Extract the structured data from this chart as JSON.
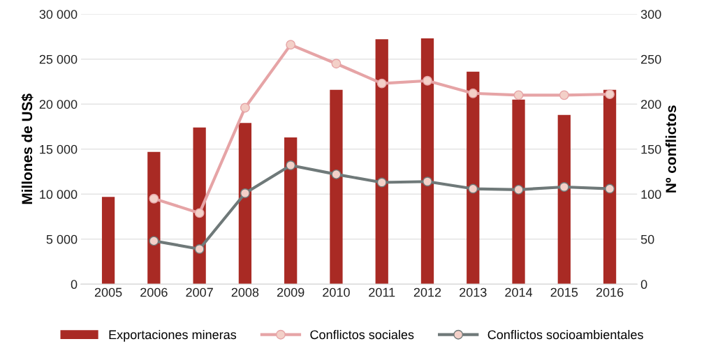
{
  "chart_data": {
    "type": "bar",
    "ylabel": "Millones de US$",
    "y2label": "Nº conflictos",
    "categories": [
      "2005",
      "2006",
      "2007",
      "2008",
      "2009",
      "2010",
      "2011",
      "2012",
      "2013",
      "2014",
      "2015",
      "2016"
    ],
    "series": [
      {
        "name": "Exportaciones mineras",
        "color": "#a92a24",
        "values": [
          9700,
          14700,
          17400,
          17900,
          16300,
          21600,
          27200,
          27300,
          23600,
          20500,
          18800,
          21600
        ]
      },
      {
        "name": "Conflictos sociales",
        "type": "line",
        "axis": "y2",
        "color": "#e6a4a6",
        "marker": "circle",
        "values": [
          null,
          95,
          79,
          196,
          266,
          245,
          223,
          226,
          212,
          210,
          210,
          211
        ]
      },
      {
        "name": "Conflictos socioambientales",
        "type": "line",
        "axis": "y2",
        "color": "#6f7979",
        "marker": "circle",
        "values": [
          null,
          48,
          39,
          101,
          132,
          122,
          113,
          114,
          106,
          105,
          108,
          106
        ]
      }
    ],
    "ylim": [
      0,
      30000
    ],
    "yticks": [
      {
        "value": 0,
        "label": "0"
      },
      {
        "value": 5000,
        "label": "5 000"
      },
      {
        "value": 10000,
        "label": "10 000"
      },
      {
        "value": 15000,
        "label": "15 000"
      },
      {
        "value": 20000,
        "label": "20 000"
      },
      {
        "value": 25000,
        "label": "25 000"
      },
      {
        "value": 30000,
        "label": "30 000"
      }
    ],
    "y2lim": [
      0,
      300
    ],
    "y2ticks": [
      0,
      50,
      100,
      150,
      200,
      250,
      300
    ],
    "grid": "y",
    "legend": "bottom"
  }
}
